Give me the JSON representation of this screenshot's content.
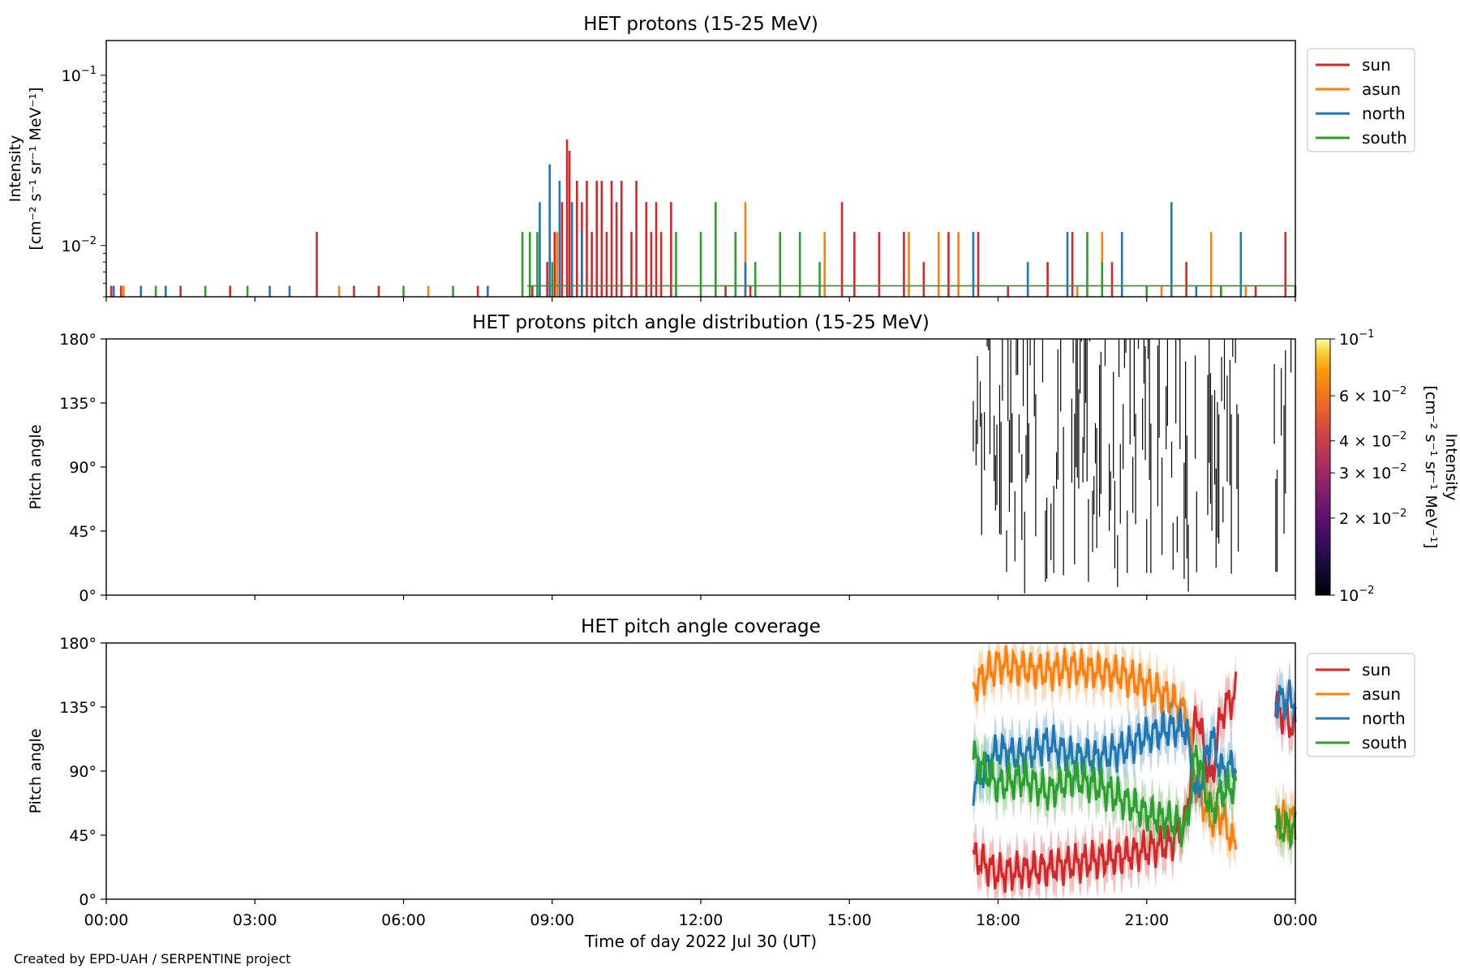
{
  "footer": {
    "credit": "Created by EPD-UAH / SERPENTINE project"
  },
  "xaxis": {
    "label": "Time of day 2022 Jul 30 (UT)",
    "ticks": [
      "00:00",
      "03:00",
      "06:00",
      "09:00",
      "12:00",
      "15:00",
      "18:00",
      "21:00",
      "00:00"
    ],
    "range_hours": [
      0,
      24
    ]
  },
  "chart_data": [
    {
      "type": "line",
      "title": "HET protons (15-25 MeV)",
      "ylabel_line1": "Intensity",
      "ylabel_line2": "[cm⁻² s⁻¹ sr⁻¹ MeV⁻¹]",
      "yscale": "log",
      "ylim": [
        0.005,
        0.16
      ],
      "yticks": [
        {
          "value": 0.01,
          "base": "10",
          "exp": "−2"
        },
        {
          "value": 0.1,
          "base": "10",
          "exp": "−1"
        }
      ],
      "legend_position": "outside-right-top",
      "baseline": 0.0058,
      "series": [
        {
          "name": "sun",
          "color": "#d62728",
          "spikes": [
            [
              0.1,
              0.0058
            ],
            [
              0.3,
              0.0058
            ],
            [
              1.5,
              0.0058
            ],
            [
              2.5,
              0.0058
            ],
            [
              4.25,
              0.012
            ],
            [
              5.0,
              0.0058
            ],
            [
              5.5,
              0.0058
            ],
            [
              7.5,
              0.0058
            ],
            [
              8.6,
              0.0058
            ],
            [
              8.9,
              0.008
            ],
            [
              9.05,
              0.012
            ],
            [
              9.2,
              0.018
            ],
            [
              9.3,
              0.042
            ],
            [
              9.35,
              0.036
            ],
            [
              9.5,
              0.024
            ],
            [
              9.6,
              0.018
            ],
            [
              9.7,
              0.024
            ],
            [
              9.8,
              0.012
            ],
            [
              9.9,
              0.024
            ],
            [
              10.0,
              0.024
            ],
            [
              10.1,
              0.012
            ],
            [
              10.2,
              0.024
            ],
            [
              10.3,
              0.018
            ],
            [
              10.4,
              0.024
            ],
            [
              10.6,
              0.012
            ],
            [
              10.7,
              0.024
            ],
            [
              10.9,
              0.018
            ],
            [
              11.0,
              0.012
            ],
            [
              11.1,
              0.018
            ],
            [
              11.2,
              0.012
            ],
            [
              11.4,
              0.018
            ],
            [
              12.5,
              0.0058
            ],
            [
              13.0,
              0.0058
            ],
            [
              14.85,
              0.018
            ],
            [
              15.1,
              0.012
            ],
            [
              15.6,
              0.012
            ],
            [
              16.1,
              0.012
            ],
            [
              16.5,
              0.008
            ],
            [
              17.0,
              0.012
            ],
            [
              17.6,
              0.012
            ],
            [
              18.2,
              0.0058
            ],
            [
              19.0,
              0.008
            ],
            [
              19.5,
              0.012
            ],
            [
              20.3,
              0.008
            ],
            [
              21.0,
              0.0058
            ],
            [
              21.8,
              0.008
            ],
            [
              22.5,
              0.0058
            ],
            [
              23.2,
              0.0058
            ],
            [
              23.8,
              0.012
            ]
          ]
        },
        {
          "name": "asun",
          "color": "#ff7f0e",
          "spikes": [
            [
              0.35,
              0.0058
            ],
            [
              4.7,
              0.0058
            ],
            [
              6.5,
              0.0058
            ],
            [
              9.1,
              0.012
            ],
            [
              12.9,
              0.018
            ],
            [
              14.5,
              0.012
            ],
            [
              16.2,
              0.012
            ],
            [
              16.8,
              0.012
            ],
            [
              17.2,
              0.012
            ],
            [
              19.6,
              0.0058
            ],
            [
              20.1,
              0.012
            ],
            [
              21.3,
              0.0058
            ],
            [
              22.3,
              0.012
            ],
            [
              23.0,
              0.0058
            ]
          ]
        },
        {
          "name": "north",
          "color": "#1f77b4",
          "spikes": [
            [
              0.15,
              0.0058
            ],
            [
              0.7,
              0.0058
            ],
            [
              1.2,
              0.0058
            ],
            [
              3.3,
              0.0058
            ],
            [
              3.7,
              0.0058
            ],
            [
              7.7,
              0.0058
            ],
            [
              8.75,
              0.018
            ],
            [
              8.95,
              0.03
            ],
            [
              9.15,
              0.024
            ],
            [
              9.4,
              0.018
            ],
            [
              9.6,
              0.012
            ],
            [
              12.9,
              0.008
            ],
            [
              17.5,
              0.012
            ],
            [
              18.6,
              0.008
            ],
            [
              19.4,
              0.012
            ],
            [
              20.5,
              0.012
            ],
            [
              21.5,
              0.018
            ],
            [
              22.0,
              0.0058
            ],
            [
              22.9,
              0.012
            ]
          ]
        },
        {
          "name": "south",
          "color": "#2ca02c",
          "spikes": [
            [
              1.0,
              0.0058
            ],
            [
              2.0,
              0.0058
            ],
            [
              2.85,
              0.0058
            ],
            [
              6.0,
              0.0058
            ],
            [
              7.0,
              0.0058
            ],
            [
              8.4,
              0.012
            ],
            [
              8.55,
              0.012
            ],
            [
              8.7,
              0.012
            ],
            [
              9.0,
              0.008
            ],
            [
              11.5,
              0.012
            ],
            [
              12.0,
              0.012
            ],
            [
              12.3,
              0.018
            ],
            [
              12.7,
              0.012
            ],
            [
              13.1,
              0.008
            ],
            [
              13.6,
              0.012
            ],
            [
              14.0,
              0.012
            ],
            [
              14.4,
              0.008
            ],
            [
              19.8,
              0.012
            ],
            [
              20.1,
              0.008
            ],
            [
              21.0,
              0.0058
            ],
            [
              22.5,
              0.0058
            ],
            [
              24.0,
              0.0058
            ]
          ]
        }
      ]
    },
    {
      "type": "heatmap",
      "title": "HET protons pitch angle distribution (15-25 MeV)",
      "ylabel": "Pitch angle",
      "ylim": [
        0,
        180
      ],
      "yticks": [
        "0°",
        "45°",
        "90°",
        "135°",
        "180°"
      ],
      "colorbar": {
        "label_line1": "Intensity",
        "label_line2": "[cm⁻² s⁻¹ sr⁻¹ MeV⁻¹]",
        "range": [
          0.01,
          0.1
        ],
        "scale": "log",
        "ticks": [
          {
            "value": 0.1,
            "mant": "",
            "base": "10",
            "exp": "−1"
          },
          {
            "value": 0.06,
            "mant": "6 × ",
            "base": "10",
            "exp": "−2"
          },
          {
            "value": 0.04,
            "mant": "4 × ",
            "base": "10",
            "exp": "−2"
          },
          {
            "value": 0.03,
            "mant": "3 × ",
            "base": "10",
            "exp": "−2"
          },
          {
            "value": 0.02,
            "mant": "2 × ",
            "base": "10",
            "exp": "−2"
          },
          {
            "value": 0.01,
            "mant": "",
            "base": "10",
            "exp": "−2"
          }
        ]
      },
      "data_start_hours": 17.5,
      "data_end_hours": 24.0
    },
    {
      "type": "area",
      "title": "HET pitch angle coverage",
      "ylabel": "Pitch angle",
      "ylim": [
        0,
        180
      ],
      "yticks": [
        "0°",
        "45°",
        "90°",
        "135°",
        "180°"
      ],
      "legend_position": "outside-right-top",
      "segments": [
        [
          17.5,
          22.8
        ],
        [
          23.6,
          24.0
        ]
      ],
      "series": [
        {
          "name": "sun",
          "color": "#d62728",
          "mean_points": [
            [
              17.5,
              30
            ],
            [
              18.0,
              18
            ],
            [
              18.5,
              20
            ],
            [
              19.0,
              22
            ],
            [
              19.5,
              25
            ],
            [
              20.0,
              28
            ],
            [
              20.5,
              30
            ],
            [
              21.0,
              35
            ],
            [
              21.5,
              40
            ],
            [
              21.8,
              55
            ],
            [
              22.0,
              135
            ],
            [
              22.3,
              80
            ],
            [
              22.5,
              130
            ],
            [
              22.8,
              145
            ],
            [
              23.6,
              135
            ],
            [
              24.0,
              120
            ]
          ],
          "band": 14
        },
        {
          "name": "asun",
          "color": "#ff7f0e",
          "mean_points": [
            [
              17.5,
              150
            ],
            [
              18.0,
              165
            ],
            [
              18.5,
              162
            ],
            [
              19.0,
              160
            ],
            [
              19.5,
              163
            ],
            [
              20.0,
              160
            ],
            [
              20.5,
              158
            ],
            [
              21.0,
              150
            ],
            [
              21.5,
              140
            ],
            [
              21.8,
              130
            ],
            [
              22.0,
              80
            ],
            [
              22.3,
              55
            ],
            [
              22.5,
              60
            ],
            [
              22.8,
              35
            ],
            [
              23.6,
              55
            ],
            [
              24.0,
              55
            ]
          ],
          "band": 14
        },
        {
          "name": "north",
          "color": "#1f77b4",
          "mean_points": [
            [
              17.5,
              80
            ],
            [
              18.0,
              105
            ],
            [
              18.5,
              100
            ],
            [
              19.0,
              110
            ],
            [
              19.5,
              100
            ],
            [
              20.0,
              100
            ],
            [
              20.5,
              105
            ],
            [
              21.0,
              115
            ],
            [
              21.5,
              120
            ],
            [
              21.8,
              120
            ],
            [
              22.0,
              70
            ],
            [
              22.3,
              115
            ],
            [
              22.5,
              90
            ],
            [
              22.8,
              95
            ],
            [
              23.6,
              140
            ],
            [
              24.0,
              140
            ]
          ],
          "band": 14
        },
        {
          "name": "south",
          "color": "#2ca02c",
          "mean_points": [
            [
              17.5,
              100
            ],
            [
              18.0,
              80
            ],
            [
              18.5,
              85
            ],
            [
              19.0,
              75
            ],
            [
              19.5,
              85
            ],
            [
              20.0,
              80
            ],
            [
              20.5,
              70
            ],
            [
              21.0,
              60
            ],
            [
              21.5,
              55
            ],
            [
              21.8,
              50
            ],
            [
              22.0,
              105
            ],
            [
              22.3,
              60
            ],
            [
              22.5,
              75
            ],
            [
              22.8,
              80
            ],
            [
              23.6,
              50
            ],
            [
              24.0,
              50
            ]
          ],
          "band": 14
        }
      ]
    }
  ]
}
